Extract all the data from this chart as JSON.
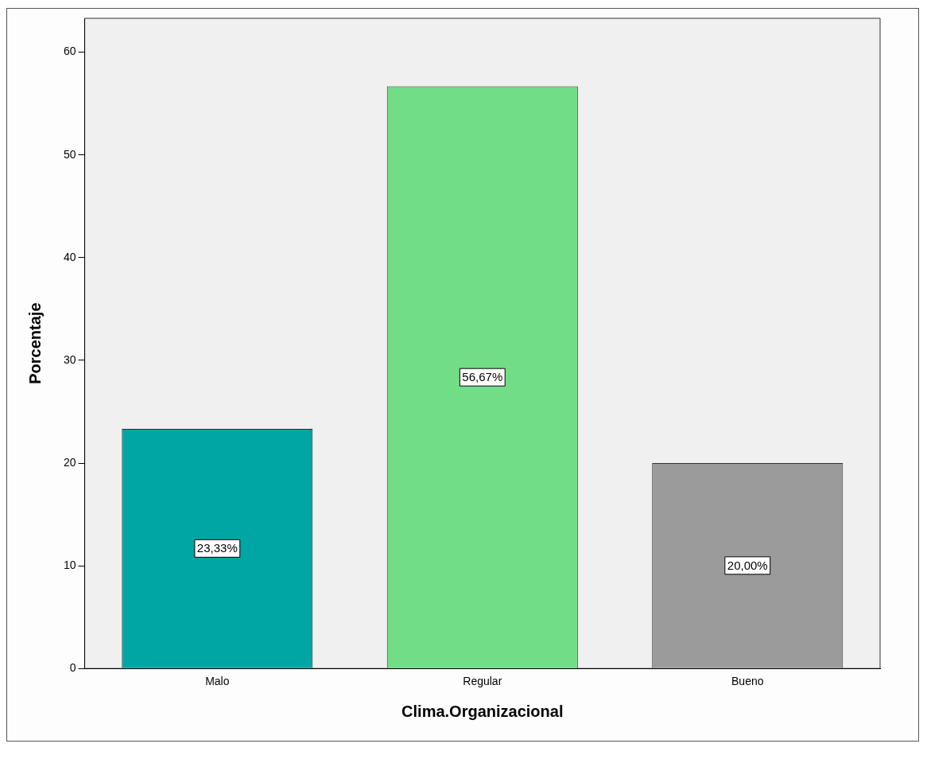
{
  "chart_data": {
    "type": "bar",
    "xlabel": "Clima.Organizacional",
    "ylabel": "Porcentaje",
    "categories": [
      "Malo",
      "Regular",
      "Bueno"
    ],
    "values": [
      23.33,
      56.67,
      20.0
    ],
    "colors": [
      "#00a6a3",
      "#72dd87",
      "#9b9b9b"
    ],
    "value_labels": [
      "23,33%",
      "56,67%",
      "20,00%"
    ],
    "ylim": [
      0,
      63.3
    ],
    "yticks": [
      0,
      10,
      20,
      30,
      40,
      50,
      60
    ],
    "grid": false,
    "legend": false
  }
}
